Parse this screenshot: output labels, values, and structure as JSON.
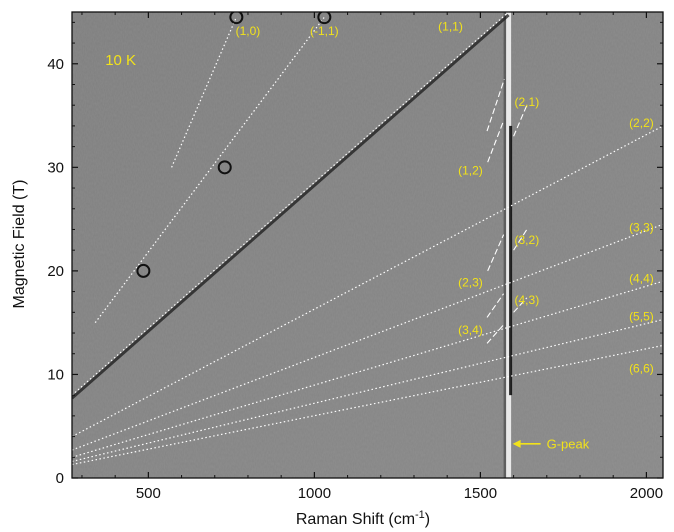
{
  "chart_data": {
    "type": "scatter",
    "title": "",
    "xlabel": "Raman Shift (cm",
    "xlabel_sup": "-1",
    "xlabel_close": ")",
    "ylabel": "Magnetic Field (T)",
    "xlim": [
      270,
      2050
    ],
    "ylim": [
      0,
      45
    ],
    "xticks": [
      500,
      1000,
      1500,
      2000
    ],
    "yticks": [
      0,
      10,
      20,
      30,
      40
    ],
    "xtick_labels": [
      "500",
      "1000",
      "1500",
      "2000"
    ],
    "ytick_labels": [
      "0",
      "10",
      "20",
      "30",
      "40"
    ],
    "temperature_label": "10 K",
    "g_peak_label": "G-peak",
    "g_peak_position": 1585,
    "points": [
      {
        "x": 485,
        "y": 20
      },
      {
        "x": 730,
        "y": 30
      },
      {
        "x": 765,
        "y": 44.5
      },
      {
        "x": 1030,
        "y": 44.5
      }
    ],
    "magnetophonon_lines": [
      {
        "label": "(1,1)",
        "x": [
          270,
          1585
        ],
        "y": [
          8,
          45
        ]
      },
      {
        "label": "(2,2)",
        "x": [
          270,
          2050
        ],
        "y": [
          4,
          34
        ]
      },
      {
        "label": "(3,3)",
        "x": [
          270,
          2050
        ],
        "y": [
          2.7,
          24.5
        ]
      },
      {
        "label": "(4,4)",
        "x": [
          270,
          2050
        ],
        "y": [
          2,
          19
        ]
      },
      {
        "label": "(5,5)",
        "x": [
          270,
          2050
        ],
        "y": [
          1.6,
          15.3
        ]
      },
      {
        "label": "(6,6)",
        "x": [
          270,
          2050
        ],
        "y": [
          1.3,
          12.8
        ]
      }
    ],
    "dotted_guides": [
      {
        "label": "(1,0)",
        "x": [
          570,
          765
        ],
        "y": [
          30,
          44.5
        ]
      },
      {
        "label": "(-1,1)",
        "x": [
          340,
          1030
        ],
        "y": [
          15,
          44.5
        ]
      }
    ],
    "annotations": [
      {
        "text": "(1,0)",
        "x": 800,
        "y": 42.8
      },
      {
        "text": "(-1,1)",
        "x": 1030,
        "y": 42.8
      },
      {
        "text": "(1,1)",
        "x": 1410,
        "y": 43.2
      },
      {
        "text": "(2,1)",
        "x": 1640,
        "y": 35.9
      },
      {
        "text": "(1,2)",
        "x": 1470,
        "y": 29.3
      },
      {
        "text": "(2,2)",
        "x": 1985,
        "y": 33.9
      },
      {
        "text": "(3,3)",
        "x": 1985,
        "y": 23.8
      },
      {
        "text": "(3,2)",
        "x": 1640,
        "y": 22.6
      },
      {
        "text": "(2,3)",
        "x": 1470,
        "y": 18.5
      },
      {
        "text": "(4,4)",
        "x": 1985,
        "y": 18.9
      },
      {
        "text": "(4,3)",
        "x": 1640,
        "y": 16.8
      },
      {
        "text": "(3,4)",
        "x": 1470,
        "y": 13.9
      },
      {
        "text": "(5,5)",
        "x": 1985,
        "y": 15.2
      },
      {
        "text": "(6,6)",
        "x": 1985,
        "y": 10.2
      }
    ]
  }
}
